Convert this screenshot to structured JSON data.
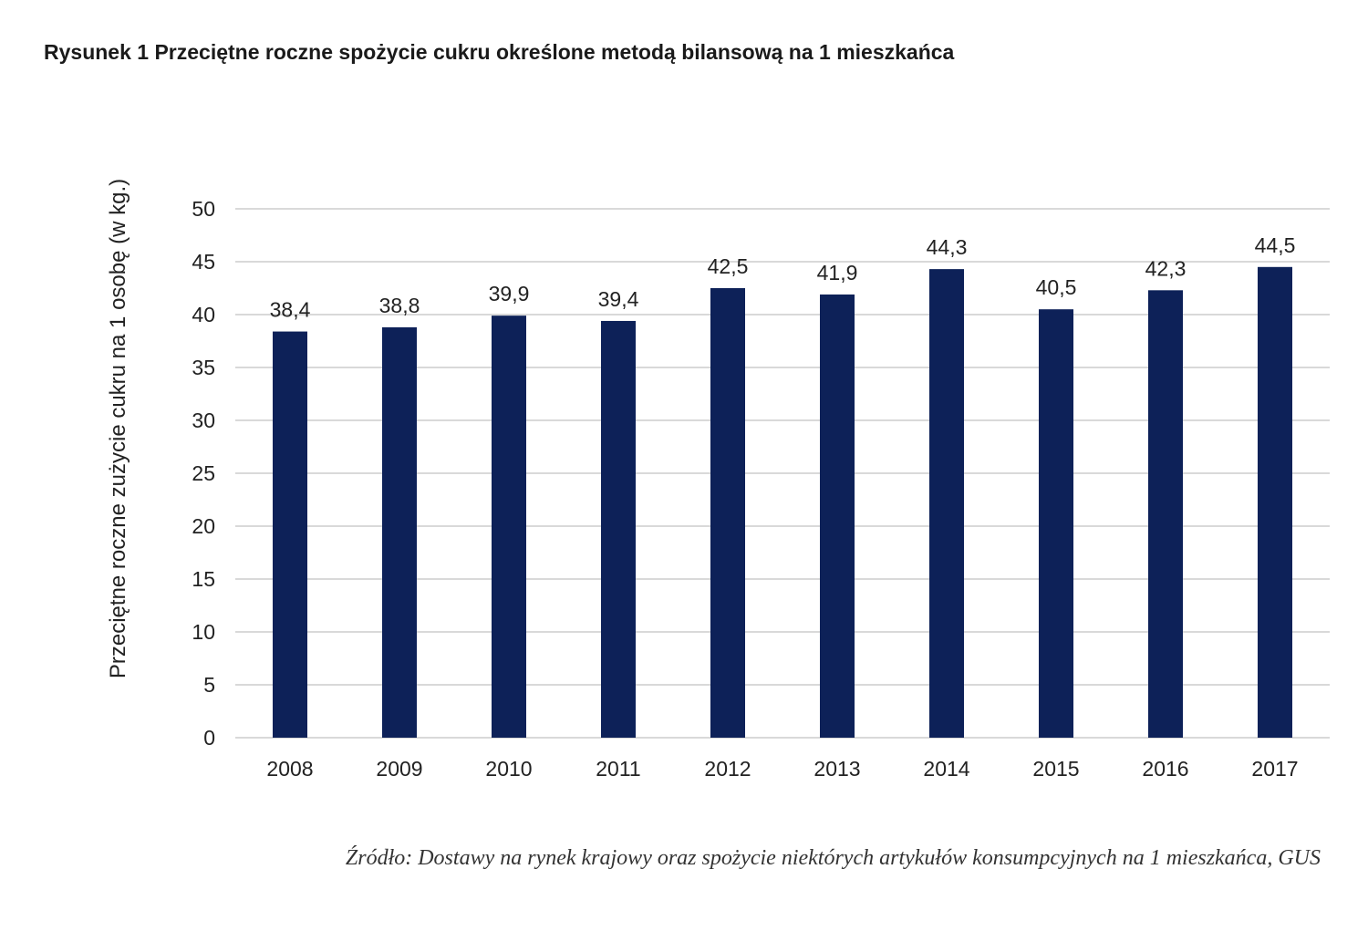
{
  "figure": {
    "title": "Rysunek 1 Przeciętne roczne spożycie cukru określone metodą bilansową na 1 mieszkańca",
    "source": "Źródło: Dostawy na rynek krajowy oraz spożycie niektórych artykułów konsumpcyjnych na 1 mieszkańca, GUS"
  },
  "chart_data": {
    "type": "bar",
    "categories": [
      "2008",
      "2009",
      "2010",
      "2011",
      "2012",
      "2013",
      "2014",
      "2015",
      "2016",
      "2017"
    ],
    "values": [
      38.4,
      38.8,
      39.9,
      39.4,
      42.5,
      41.9,
      44.3,
      40.5,
      42.3,
      44.5
    ],
    "data_labels": [
      "38,4",
      "38,8",
      "39,9",
      "39,4",
      "42,5",
      "41,9",
      "44,3",
      "40,5",
      "42,3",
      "44,5"
    ],
    "xlabel": "",
    "ylabel": "Przeciętne roczne zużycie cukru na 1 osobę (w kg.)",
    "ylim": [
      0,
      50
    ],
    "yticks": [
      0,
      5,
      10,
      15,
      20,
      25,
      30,
      35,
      40,
      45,
      50
    ],
    "grid": true,
    "legend": "none",
    "bar_color": "#0d2158",
    "grid_color": "#d9d9d9"
  }
}
